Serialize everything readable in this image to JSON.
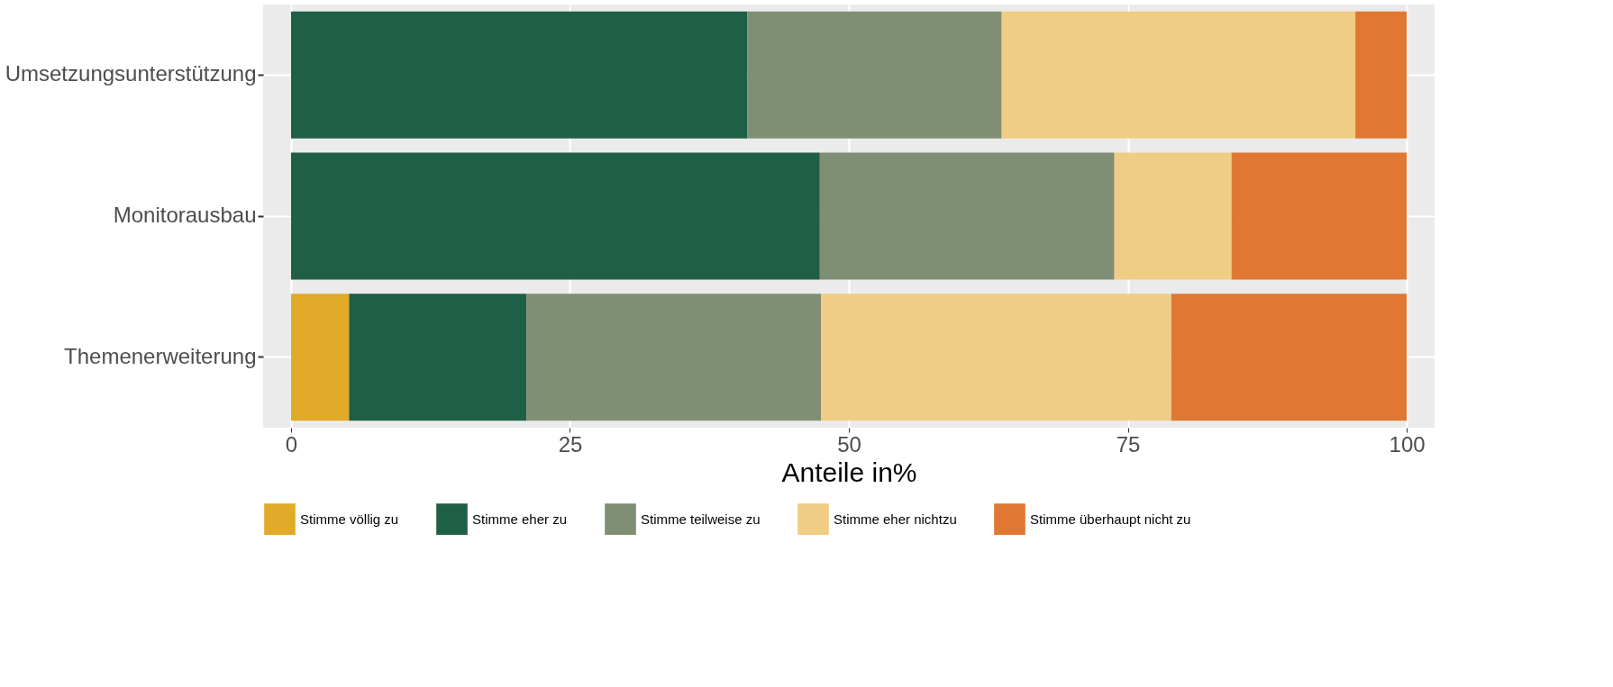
{
  "chart_data": {
    "type": "bar",
    "orientation": "horizontal",
    "stacked": true,
    "xlabel": "Anteile in%",
    "categories": [
      "Umsetzungsunterstützung",
      "Monitorausbau",
      "Themenerweiterung"
    ],
    "series": [
      {
        "name": "Stimme völlig zu",
        "color": "#e1aa28",
        "values": [
          0,
          0,
          5.2
        ]
      },
      {
        "name": "Stimme eher zu",
        "color": "#1f5f46",
        "values": [
          40.9,
          47.4,
          15.9
        ]
      },
      {
        "name": "Stimme teilweise zu",
        "color": "#7f8f74",
        "values": [
          22.8,
          26.4,
          26.4
        ]
      },
      {
        "name": "Stimme eher nichtzu",
        "color": "#f0cd85",
        "values": [
          31.7,
          10.5,
          31.4
        ]
      },
      {
        "name": "Stimme überhaupt nicht zu",
        "color": "#e07833",
        "values": [
          4.6,
          15.7,
          21.1
        ]
      }
    ],
    "xlim": [
      -2.5,
      102.5
    ],
    "xticks": [
      0,
      25,
      50,
      75,
      100
    ],
    "grid": true,
    "legend": "bottom"
  }
}
